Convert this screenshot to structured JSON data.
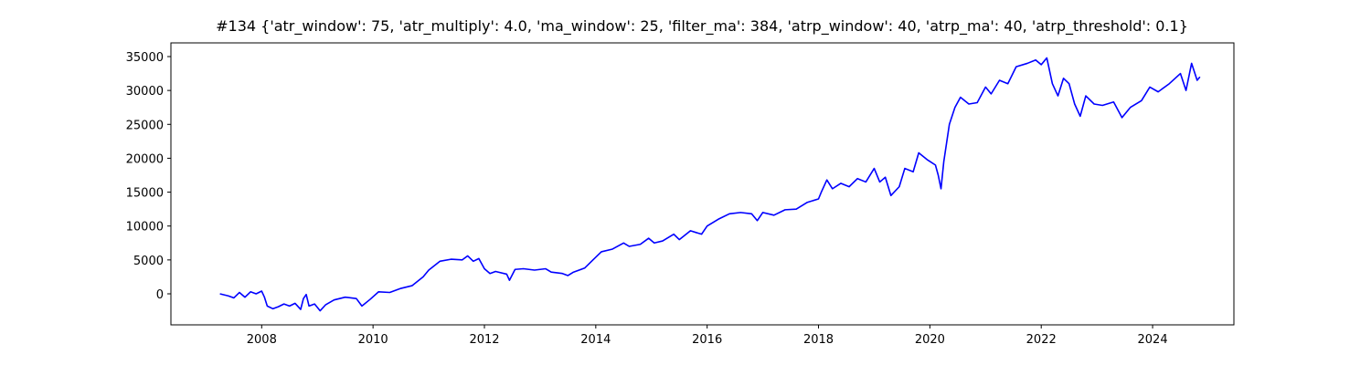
{
  "chart_data": {
    "type": "line",
    "title": "#134 {'atr_window': 75, 'atr_multiply': 4.0, 'ma_window': 25, 'filter_ma': 384, 'atrp_window': 40, 'atrp_ma': 40, 'atrp_threshold': 0.1}",
    "x": [
      2007.25,
      2007.4,
      2007.5,
      2007.6,
      2007.7,
      2007.8,
      2007.9,
      2008.0,
      2008.05,
      2008.1,
      2008.2,
      2008.3,
      2008.4,
      2008.5,
      2008.6,
      2008.7,
      2008.75,
      2008.8,
      2008.85,
      2008.95,
      2009.05,
      2009.15,
      2009.3,
      2009.5,
      2009.7,
      2009.8,
      2009.95,
      2010.1,
      2010.3,
      2010.5,
      2010.7,
      2010.9,
      2011.0,
      2011.2,
      2011.4,
      2011.6,
      2011.7,
      2011.8,
      2011.9,
      2012.0,
      2012.1,
      2012.2,
      2012.4,
      2012.45,
      2012.55,
      2012.7,
      2012.9,
      2013.1,
      2013.2,
      2013.4,
      2013.5,
      2013.6,
      2013.8,
      2013.95,
      2014.1,
      2014.3,
      2014.5,
      2014.6,
      2014.8,
      2014.95,
      2015.05,
      2015.2,
      2015.4,
      2015.5,
      2015.7,
      2015.9,
      2016.0,
      2016.2,
      2016.4,
      2016.6,
      2016.8,
      2016.9,
      2017.0,
      2017.2,
      2017.4,
      2017.6,
      2017.8,
      2018.0,
      2018.05,
      2018.15,
      2018.25,
      2018.4,
      2018.55,
      2018.7,
      2018.85,
      2019.0,
      2019.1,
      2019.2,
      2019.3,
      2019.45,
      2019.55,
      2019.7,
      2019.8,
      2019.95,
      2020.1,
      2020.15,
      2020.2,
      2020.25,
      2020.35,
      2020.45,
      2020.55,
      2020.7,
      2020.85,
      2021.0,
      2021.1,
      2021.25,
      2021.4,
      2021.55,
      2021.75,
      2021.9,
      2022.0,
      2022.1,
      2022.2,
      2022.3,
      2022.4,
      2022.5,
      2022.6,
      2022.7,
      2022.8,
      2022.95,
      2023.1,
      2023.3,
      2023.45,
      2023.6,
      2023.8,
      2023.95,
      2024.1,
      2024.3,
      2024.5,
      2024.6,
      2024.7,
      2024.8,
      2024.85
    ],
    "series": [
      {
        "color": "#0000ff",
        "values": [
          0,
          -300,
          -600,
          200,
          -500,
          300,
          0,
          400,
          -500,
          -1800,
          -2200,
          -1900,
          -1500,
          -1800,
          -1400,
          -2300,
          -700,
          -100,
          -1800,
          -1500,
          -2500,
          -1600,
          -900,
          -500,
          -700,
          -1800,
          -800,
          300,
          200,
          800,
          1200,
          2500,
          3500,
          4800,
          5100,
          5000,
          5600,
          4800,
          5200,
          3700,
          3000,
          3300,
          2900,
          2000,
          3600,
          3700,
          3500,
          3700,
          3200,
          3000,
          2700,
          3200,
          3800,
          5000,
          6200,
          6600,
          7500,
          7000,
          7300,
          8200,
          7500,
          7800,
          8800,
          8000,
          9300,
          8800,
          10000,
          11000,
          11800,
          12000,
          11800,
          10800,
          12000,
          11600,
          12400,
          12500,
          13500,
          14000,
          15000,
          16800,
          15500,
          16300,
          15800,
          17000,
          16500,
          18500,
          16500,
          17200,
          14500,
          15800,
          18500,
          18000,
          20800,
          19800,
          19000,
          17500,
          15500,
          19500,
          25000,
          27500,
          29000,
          28000,
          28200,
          30500,
          29500,
          31500,
          31000,
          33500,
          34000,
          34500,
          33800,
          34800,
          31000,
          29200,
          31800,
          31000,
          28000,
          26200,
          29200,
          28000,
          27800,
          28300,
          26000,
          27500,
          28500,
          30500,
          29800,
          31000,
          32500,
          30000,
          34000,
          31500,
          32000
        ]
      }
    ],
    "xlim": [
      2006.37,
      2025.46
    ],
    "ylim": [
      -4577,
      37019
    ],
    "xticks": [
      2008,
      2010,
      2012,
      2014,
      2016,
      2018,
      2020,
      2022,
      2024
    ],
    "yticks": [
      0,
      5000,
      10000,
      15000,
      20000,
      25000,
      30000,
      35000
    ]
  }
}
